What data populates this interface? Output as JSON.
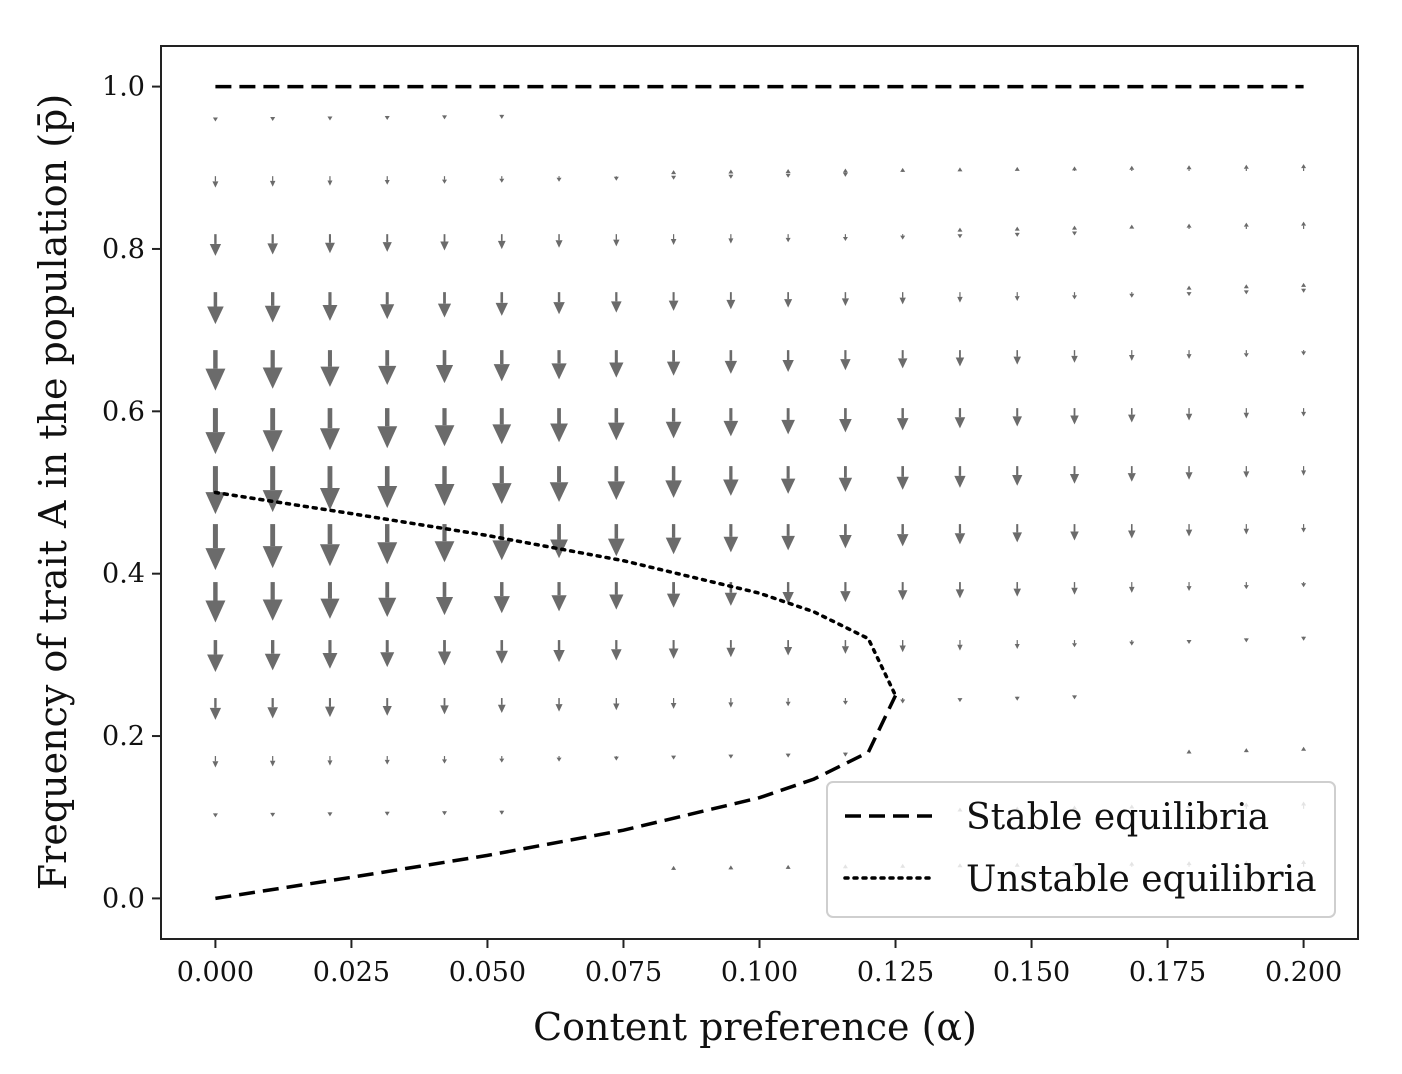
{
  "chart_data": {
    "type": "quiver",
    "title": "",
    "xlabel": "Content preference (α)",
    "ylabel": "Frequency of trait A in the population (p̄)",
    "xlim": [
      -0.01,
      0.21
    ],
    "ylim": [
      -0.05,
      1.05
    ],
    "xticks": [
      {
        "value": 0.0,
        "label": "0.000"
      },
      {
        "value": 0.025,
        "label": "0.025"
      },
      {
        "value": 0.05,
        "label": "0.050"
      },
      {
        "value": 0.075,
        "label": "0.075"
      },
      {
        "value": 0.1,
        "label": "0.100"
      },
      {
        "value": 0.125,
        "label": "0.125"
      },
      {
        "value": 0.15,
        "label": "0.150"
      },
      {
        "value": 0.175,
        "label": "0.175"
      },
      {
        "value": 0.2,
        "label": "0.200"
      }
    ],
    "yticks": [
      {
        "value": 0.0,
        "label": "0.0"
      },
      {
        "value": 0.2,
        "label": "0.2"
      },
      {
        "value": 0.4,
        "label": "0.4"
      },
      {
        "value": 0.6,
        "label": "0.6"
      },
      {
        "value": 0.8,
        "label": "0.8"
      },
      {
        "value": 1.0,
        "label": "1.0"
      }
    ],
    "vector_field": {
      "x_start": 0.0,
      "x_end": 0.2,
      "x_count": 20,
      "y_start": 0.0,
      "y_end": 1.0,
      "y_count": 15,
      "dy": "p(1-p)(p^2 - p + alpha)",
      "color": "#6b6b6b"
    },
    "series": [
      {
        "name": "Stable equilibria",
        "style": "dashed",
        "color": "#000000",
        "x": [
          0.0,
          0.2
        ],
        "y": [
          1.0,
          1.0
        ]
      },
      {
        "name": "Stable equilibria",
        "style": "dashed",
        "color": "#000000",
        "x": [
          0.0,
          0.025,
          0.05,
          0.075,
          0.1,
          0.11,
          0.12,
          0.125
        ],
        "y": [
          0.0,
          0.026,
          0.053,
          0.084,
          0.124,
          0.147,
          0.18,
          0.25
        ]
      },
      {
        "name": "Unstable equilibria",
        "style": "dotted",
        "color": "#000000",
        "x": [
          0.0,
          0.025,
          0.05,
          0.075,
          0.1,
          0.11,
          0.12,
          0.125
        ],
        "y": [
          0.5,
          0.474,
          0.447,
          0.416,
          0.376,
          0.353,
          0.32,
          0.25
        ]
      }
    ],
    "legend": {
      "position": "lower-right",
      "entries": [
        {
          "label": "Stable equilibria",
          "style": "dashed"
        },
        {
          "label": "Unstable equilibria",
          "style": "dotted"
        }
      ]
    },
    "grid": false
  }
}
